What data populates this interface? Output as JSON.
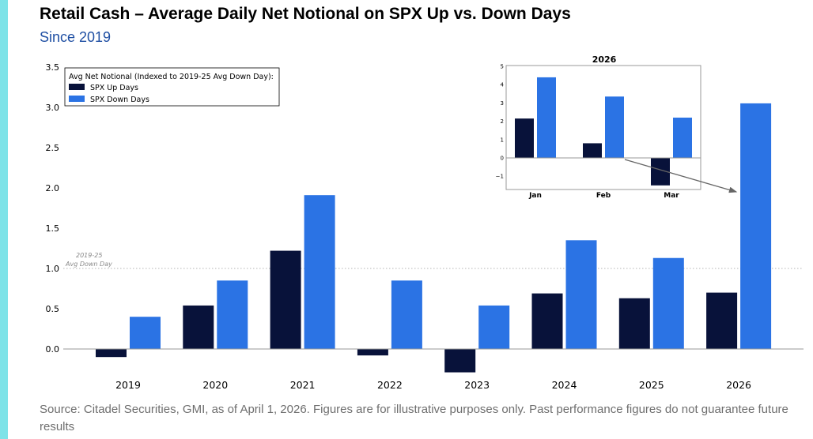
{
  "header": {
    "title": "Retail Cash – Average Daily Net Notional on SPX Up vs. Down Days",
    "subtitle": "Since 2019"
  },
  "footer": {
    "source": "Source: Citadel Securities, GMI, as of April 1, 2026. Figures are for illustrative purposes only. Past performance figures do not guarantee future results"
  },
  "colors": {
    "up": "#08123a",
    "down": "#2b73e4",
    "accent": "#7de3e8",
    "subtitle": "#1f4fa3"
  },
  "chart_data": [
    {
      "type": "bar",
      "title": "",
      "xlabel": "",
      "ylabel": "",
      "categories": [
        "2019",
        "2020",
        "2021",
        "2022",
        "2023",
        "2024",
        "2025",
        "2026"
      ],
      "series": [
        {
          "name": "SPX Up Days",
          "values": [
            -0.1,
            0.54,
            1.22,
            -0.08,
            -0.29,
            0.69,
            0.63,
            0.7
          ]
        },
        {
          "name": "SPX Down Days",
          "values": [
            0.4,
            0.85,
            1.91,
            0.85,
            0.54,
            1.35,
            1.13,
            3.05
          ]
        }
      ],
      "ylim": [
        -0.3,
        3.5
      ],
      "yticks": [
        "0.0",
        "0.5",
        "1.0",
        "1.5",
        "2.0",
        "2.5",
        "3.0",
        "3.5"
      ],
      "legend_title": "Avg Net Notional (Indexed to 2019-25 Avg Down Day):",
      "legend_position": "top-left",
      "reference_line": {
        "value": 1.0,
        "label_line1": "2019-25",
        "label_line2": "Avg Down Day"
      }
    },
    {
      "type": "bar",
      "title": "2026",
      "categories": [
        "Jan",
        "Feb",
        "Mar"
      ],
      "series": [
        {
          "name": "SPX Up Days",
          "values": [
            2.15,
            0.8,
            -1.5
          ]
        },
        {
          "name": "SPX Down Days",
          "values": [
            4.4,
            3.35,
            2.2
          ]
        }
      ],
      "ylim": [
        -1.7,
        5
      ],
      "yticks": [
        "−1",
        "0",
        "1",
        "2",
        "3",
        "4",
        "5"
      ]
    }
  ]
}
